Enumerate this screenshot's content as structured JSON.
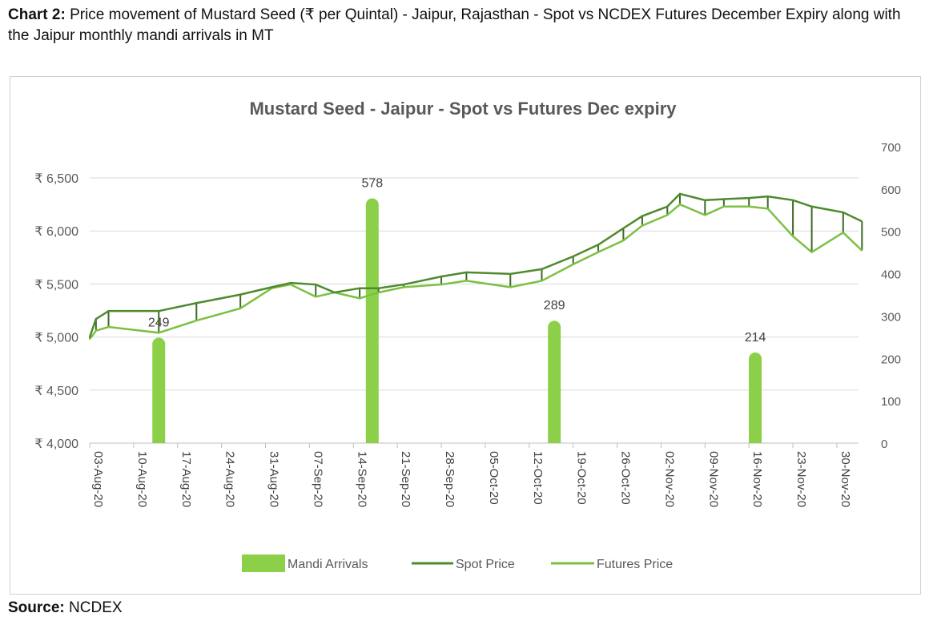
{
  "caption": {
    "prefix": "Chart 2:",
    "text": "Price movement of Mustard Seed (₹ per Quintal) - Jaipur, Rajasthan - Spot vs NCDEX Futures December Expiry along with the Jaipur monthly mandi arrivals in MT"
  },
  "source": {
    "label": "Source:",
    "value": "NCDEX"
  },
  "chart_data": {
    "type": "bar+line",
    "title": "Mustard Seed - Jaipur - Spot vs Futures Dec expiry",
    "y_left": {
      "range": [
        4000,
        6500
      ],
      "ticks": [
        "₹ 4,000",
        "₹ 4,500",
        "₹ 5,000",
        "₹ 5,500",
        "₹ 6,000",
        "₹ 6,500"
      ],
      "values": [
        4000,
        4500,
        5000,
        5500,
        6000,
        6500
      ]
    },
    "y_right": {
      "range": [
        0,
        700
      ],
      "ticks": [
        "0",
        "100",
        "200",
        "300",
        "400",
        "500",
        "600",
        "700"
      ]
    },
    "x_range": [
      "2020-08-03",
      "2020-12-05"
    ],
    "x_ticks": [
      "03-Aug-20",
      "10-Aug-20",
      "17-Aug-20",
      "24-Aug-20",
      "31-Aug-20",
      "07-Sep-20",
      "14-Sep-20",
      "21-Sep-20",
      "28-Sep-20",
      "05-Oct-20",
      "12-Oct-20",
      "19-Oct-20",
      "26-Oct-20",
      "02-Nov-20",
      "09-Nov-20",
      "16-Nov-20",
      "23-Nov-20",
      "30-Nov-20"
    ],
    "grid": true,
    "legend": "bottom",
    "colors": {
      "bars": "#8cd04a",
      "spot": "#4f8a2e",
      "futures": "#7cc043",
      "grid": "#d9d9d9"
    },
    "bars": {
      "name": "Mandi Arrivals",
      "axis": "right",
      "points": [
        {
          "x": "2020-08-14",
          "y": 249
        },
        {
          "x": "2020-09-17",
          "y": 578
        },
        {
          "x": "2020-10-16",
          "y": 289
        },
        {
          "x": "2020-11-17",
          "y": 214
        }
      ]
    },
    "series": [
      {
        "name": "Spot Price",
        "points": [
          [
            "2020-08-03",
            5000
          ],
          [
            "2020-08-04",
            5170
          ],
          [
            "2020-08-06",
            5245
          ],
          [
            "2020-08-14",
            5245
          ],
          [
            "2020-08-20",
            5320
          ],
          [
            "2020-08-27",
            5400
          ],
          [
            "2020-09-01",
            5470
          ],
          [
            "2020-09-04",
            5510
          ],
          [
            "2020-09-08",
            5495
          ],
          [
            "2020-09-11",
            5420
          ],
          [
            "2020-09-15",
            5460
          ],
          [
            "2020-09-18",
            5460
          ],
          [
            "2020-09-22",
            5495
          ],
          [
            "2020-09-28",
            5570
          ],
          [
            "2020-10-02",
            5610
          ],
          [
            "2020-10-09",
            5595
          ],
          [
            "2020-10-14",
            5640
          ],
          [
            "2020-10-19",
            5760
          ],
          [
            "2020-10-23",
            5870
          ],
          [
            "2020-10-27",
            6025
          ],
          [
            "2020-10-30",
            6140
          ],
          [
            "2020-11-03",
            6230
          ],
          [
            "2020-11-05",
            6350
          ],
          [
            "2020-11-09",
            6290
          ],
          [
            "2020-11-12",
            6300
          ],
          [
            "2020-11-16",
            6310
          ],
          [
            "2020-11-19",
            6325
          ],
          [
            "2020-11-23",
            6290
          ],
          [
            "2020-11-26",
            6230
          ],
          [
            "2020-12-01",
            6175
          ],
          [
            "2020-12-04",
            6090
          ]
        ]
      },
      {
        "name": "Futures Price",
        "points": [
          [
            "2020-08-03",
            4980
          ],
          [
            "2020-08-04",
            5060
          ],
          [
            "2020-08-06",
            5095
          ],
          [
            "2020-08-14",
            5040
          ],
          [
            "2020-08-20",
            5155
          ],
          [
            "2020-08-27",
            5270
          ],
          [
            "2020-09-01",
            5460
          ],
          [
            "2020-09-04",
            5495
          ],
          [
            "2020-09-08",
            5380
          ],
          [
            "2020-09-11",
            5420
          ],
          [
            "2020-09-15",
            5365
          ],
          [
            "2020-09-18",
            5420
          ],
          [
            "2020-09-22",
            5470
          ],
          [
            "2020-09-28",
            5495
          ],
          [
            "2020-10-02",
            5530
          ],
          [
            "2020-10-09",
            5470
          ],
          [
            "2020-10-14",
            5530
          ],
          [
            "2020-10-19",
            5685
          ],
          [
            "2020-10-23",
            5800
          ],
          [
            "2020-10-27",
            5910
          ],
          [
            "2020-10-30",
            6050
          ],
          [
            "2020-11-03",
            6150
          ],
          [
            "2020-11-05",
            6250
          ],
          [
            "2020-11-09",
            6150
          ],
          [
            "2020-11-12",
            6230
          ],
          [
            "2020-11-16",
            6230
          ],
          [
            "2020-11-19",
            6210
          ],
          [
            "2020-11-23",
            5950
          ],
          [
            "2020-11-26",
            5800
          ],
          [
            "2020-12-01",
            5985
          ],
          [
            "2020-12-04",
            5815
          ]
        ]
      }
    ]
  }
}
